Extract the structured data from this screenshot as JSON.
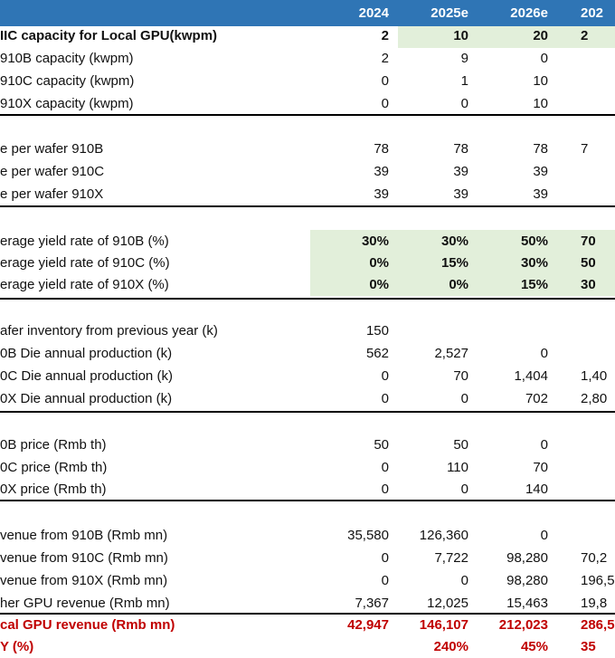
{
  "header": {
    "columns": [
      "2024",
      "2025e",
      "2026e",
      "202"
    ]
  },
  "rows": [
    {
      "label": "IIC capacity for Local GPU(kwpm)",
      "cells": [
        "2",
        "10",
        "20",
        "2"
      ],
      "bold": true
    },
    {
      "label": "910B capacity (kwpm)",
      "cells": [
        "2",
        "9",
        "0",
        null
      ]
    },
    {
      "label": "910C capacity (kwpm)",
      "cells": [
        "0",
        "1",
        "10",
        null
      ]
    },
    {
      "label": "910X capacity (kwpm)",
      "cells": [
        "0",
        "0",
        "10",
        null
      ]
    },
    {
      "label": "e per wafer 910B",
      "cells": [
        "78",
        "78",
        "78",
        "7"
      ]
    },
    {
      "label": "e per wafer 910C",
      "cells": [
        "39",
        "39",
        "39",
        null
      ]
    },
    {
      "label": "e per wafer 910X",
      "cells": [
        "39",
        "39",
        "39",
        null
      ]
    },
    {
      "label": "erage yield rate of 910B (%)",
      "cells": [
        "30%",
        "30%",
        "50%",
        "70"
      ],
      "bold_values": true
    },
    {
      "label": "erage yield rate of 910C (%)",
      "cells": [
        "0%",
        "15%",
        "30%",
        "50"
      ],
      "bold_values": true
    },
    {
      "label": "erage yield rate of 910X (%)",
      "cells": [
        "0%",
        "0%",
        "15%",
        "30"
      ],
      "bold_values": true
    },
    {
      "label": "afer inventory from previous year (k)",
      "cells": [
        "150",
        null,
        null,
        null
      ]
    },
    {
      "label": "0B Die annual production (k)",
      "cells": [
        "562",
        "2,527",
        "0",
        null
      ]
    },
    {
      "label": "0C Die annual production (k)",
      "cells": [
        "0",
        "70",
        "1,404",
        "1,40"
      ]
    },
    {
      "label": "0X Die annual production (k)",
      "cells": [
        "0",
        "0",
        "702",
        "2,80"
      ]
    },
    {
      "label": "0B price (Rmb th)",
      "cells": [
        "50",
        "50",
        "0",
        null
      ]
    },
    {
      "label": "0C price (Rmb th)",
      "cells": [
        "0",
        "110",
        "70",
        null
      ]
    },
    {
      "label": "0X price (Rmb th)",
      "cells": [
        "0",
        "0",
        "140",
        null
      ]
    },
    {
      "label": "venue from 910B (Rmb mn)",
      "cells": [
        "35,580",
        "126,360",
        "0",
        null
      ]
    },
    {
      "label": "venue from 910C (Rmb mn)",
      "cells": [
        "0",
        "7,722",
        "98,280",
        "70,2"
      ]
    },
    {
      "label": "venue from 910X (Rmb mn)",
      "cells": [
        "0",
        "0",
        "98,280",
        "196,5"
      ]
    },
    {
      "label": "her GPU revenue (Rmb mn)",
      "cells": [
        "7,367",
        "12,025",
        "15,463",
        "19,8"
      ]
    },
    {
      "label": "cal GPU revenue (Rmb mn)",
      "cells": [
        "42,947",
        "146,107",
        "212,023",
        "286,5"
      ],
      "bold": true,
      "color": "#c00000"
    },
    {
      "label": "Y (%)",
      "cells": [
        null,
        "240%",
        "45%",
        "35"
      ],
      "bold": true,
      "color": "#c00000"
    }
  ]
}
